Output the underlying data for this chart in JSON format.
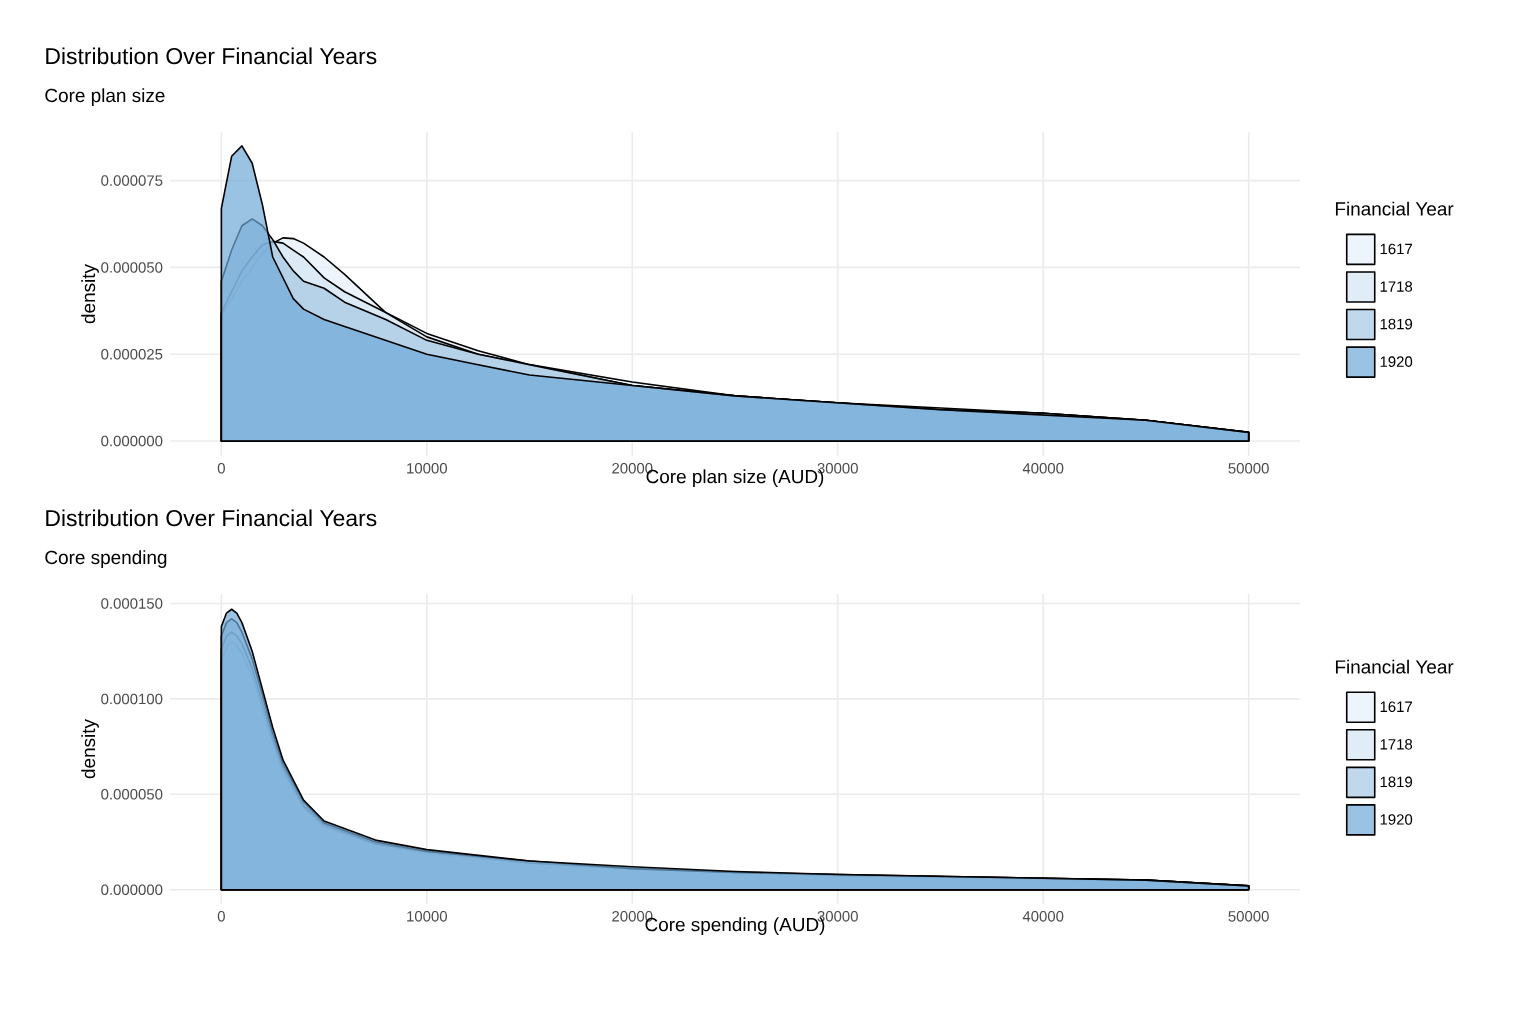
{
  "chart_data": [
    {
      "type": "area",
      "title": "Distribution Over Financial Years",
      "subtitle": "Core plan size",
      "xlabel": "Core plan size (AUD)",
      "ylabel": "density",
      "legend_title": "Financial Year",
      "x": [
        0,
        500,
        1000,
        1500,
        2000,
        2500,
        3000,
        3500,
        4000,
        5000,
        6000,
        8000,
        10000,
        12500,
        15000,
        20000,
        25000,
        30000,
        35000,
        40000,
        45000,
        50000
      ],
      "series": [
        {
          "name": "1617",
          "color": "#e6f0fa",
          "values": [
            3.6e-05,
            4.1e-05,
            4.6e-05,
            5e-05,
            5.4e-05,
            5.7e-05,
            5.85e-05,
            5.83e-05,
            5.7e-05,
            5.3e-05,
            4.8e-05,
            3.7e-05,
            3.1e-05,
            2.6e-05,
            2.2e-05,
            1.7e-05,
            1.3e-05,
            1.1e-05,
            9.5e-06,
            8e-06,
            6e-06,
            2.5e-06
          ]
        },
        {
          "name": "1718",
          "color": "#d4e5f2",
          "values": [
            3.7e-05,
            4.3e-05,
            4.9e-05,
            5.3e-05,
            5.65e-05,
            5.75e-05,
            5.7e-05,
            5.5e-05,
            5.3e-05,
            4.7e-05,
            4.3e-05,
            3.7e-05,
            3e-05,
            2.5e-05,
            2.2e-05,
            1.6e-05,
            1.3e-05,
            1.1e-05,
            9e-06,
            8e-06,
            6e-06,
            2.5e-06
          ]
        },
        {
          "name": "1819",
          "color": "#a5c8e4",
          "values": [
            4.6e-05,
            5.5e-05,
            6.2e-05,
            6.4e-05,
            6.2e-05,
            5.8e-05,
            5.3e-05,
            4.9e-05,
            4.6e-05,
            4.4e-05,
            4e-05,
            3.5e-05,
            2.9e-05,
            2.5e-05,
            2.2e-05,
            1.6e-05,
            1.3e-05,
            1.1e-05,
            9e-06,
            8e-06,
            6e-06,
            2.5e-06
          ]
        },
        {
          "name": "1920",
          "color": "#6fa8d6",
          "values": [
            6.7e-05,
            8.2e-05,
            8.5e-05,
            8e-05,
            6.8e-05,
            5.3e-05,
            4.7e-05,
            4.1e-05,
            3.8e-05,
            3.5e-05,
            3.3e-05,
            2.9e-05,
            2.5e-05,
            2.2e-05,
            1.9e-05,
            1.6e-05,
            1.3e-05,
            1.1e-05,
            9e-06,
            7.5e-06,
            6e-06,
            2.5e-06
          ]
        }
      ],
      "xlim": [
        -2500,
        52500
      ],
      "ylim": [
        -4.3e-06,
        8.9e-05
      ],
      "xticks": [
        0,
        10000,
        20000,
        30000,
        40000,
        50000
      ],
      "yticks": [
        {
          "value": 0,
          "label": "0.000000"
        },
        {
          "value": 2.5e-05,
          "label": "0.000025"
        },
        {
          "value": 5e-05,
          "label": "0.000050"
        },
        {
          "value": 7.5e-05,
          "label": "0.000075"
        }
      ],
      "grid": true,
      "legend": "right"
    },
    {
      "type": "area",
      "title": "Distribution Over Financial Years",
      "subtitle": "Core spending",
      "xlabel": "Core spending (AUD)",
      "ylabel": "density",
      "legend_title": "Financial Year",
      "x": [
        0,
        250,
        500,
        750,
        1000,
        1500,
        2000,
        2500,
        3000,
        4000,
        5000,
        7500,
        10000,
        15000,
        20000,
        25000,
        30000,
        40000,
        45000,
        50000
      ],
      "series": [
        {
          "name": "1617",
          "color": "#e6f0fa",
          "values": [
            0.00012,
            0.000127,
            0.00013,
            0.000128,
            0.000124,
            0.000112,
            9.5e-05,
            7.7e-05,
            6.2e-05,
            4.3e-05,
            3.3e-05,
            2.4e-05,
            1.9e-05,
            1.4e-05,
            1.1e-05,
            9e-06,
            7.5e-06,
            5.5e-06,
            5e-06,
            2e-06
          ]
        },
        {
          "name": "1718",
          "color": "#d4e5f2",
          "values": [
            0.000126,
            0.000133,
            0.000135,
            0.000133,
            0.000129,
            0.000116,
            9.8e-05,
            7.9e-05,
            6.4e-05,
            4.4e-05,
            3.4e-05,
            2.4e-05,
            2e-05,
            1.4e-05,
            1.1e-05,
            9e-06,
            7.5e-06,
            6e-06,
            5e-06,
            2e-06
          ]
        },
        {
          "name": "1819",
          "color": "#a5c8e4",
          "values": [
            0.000133,
            0.00014,
            0.000142,
            0.00014,
            0.000135,
            0.000121,
            0.000102,
            8.2e-05,
            6.6e-05,
            4.6e-05,
            3.5e-05,
            2.5e-05,
            2e-05,
            1.5e-05,
            1.1e-05,
            9e-06,
            8e-06,
            6e-06,
            5e-06,
            2e-06
          ]
        },
        {
          "name": "1920",
          "color": "#6fa8d6",
          "values": [
            0.000138,
            0.000145,
            0.000147,
            0.000145,
            0.00014,
            0.000125,
            0.000105,
            8.5e-05,
            6.8e-05,
            4.7e-05,
            3.6e-05,
            2.6e-05,
            2.1e-05,
            1.5e-05,
            1.2e-05,
            9.5e-06,
            8e-06,
            6e-06,
            5e-06,
            2e-06
          ]
        }
      ],
      "xlim": [
        -2500,
        52500
      ],
      "ylim": [
        -7.5e-06,
        0.000155
      ],
      "xticks": [
        0,
        10000,
        20000,
        30000,
        40000,
        50000
      ],
      "yticks": [
        {
          "value": 0,
          "label": "0.000000"
        },
        {
          "value": 5e-05,
          "label": "0.000050"
        },
        {
          "value": 0.0001,
          "label": "0.000100"
        },
        {
          "value": 0.00015,
          "label": "0.000150"
        }
      ],
      "grid": true,
      "legend": "right"
    }
  ]
}
